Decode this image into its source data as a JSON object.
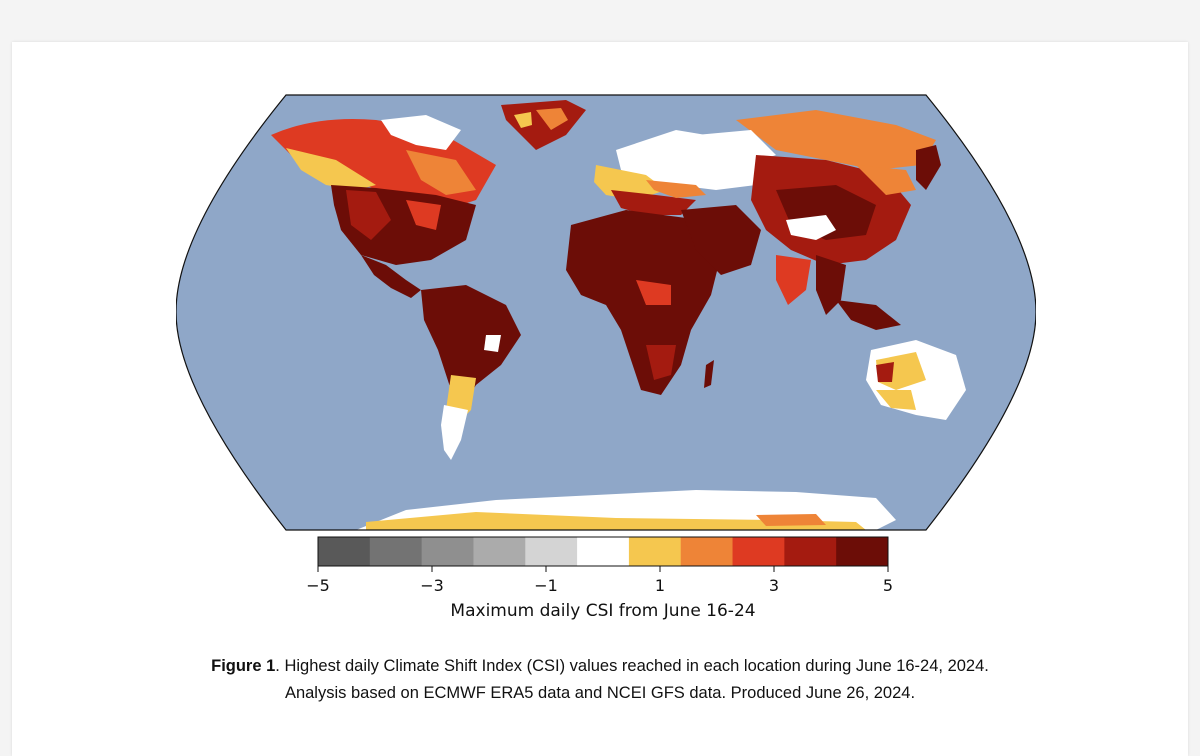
{
  "figure": {
    "colorbar": {
      "colors": [
        "#595959",
        "#737373",
        "#8f8f8f",
        "#ababab",
        "#d4d4d4",
        "#ffffff",
        "#f5c74f",
        "#ee8437",
        "#de3a22",
        "#a41b10",
        "#6c0d07"
      ],
      "tick_labels": [
        "−5",
        "−3",
        "−1",
        "1",
        "3",
        "5"
      ],
      "label": "Maximum daily CSI from June 16-24"
    },
    "caption": {
      "label": "Figure 1",
      "line1_rest": ". Highest daily Climate Shift Index (CSI) values reached in each location during June 16-24, 2024.",
      "line2": "Analysis based on ECMWF ERA5 data and NCEI GFS data. Produced June 26, 2024."
    },
    "map": {
      "ocean_color": "#8fa7c8",
      "land_palette": {
        "extreme": "#6c0d07",
        "very_high": "#a41b10",
        "high": "#de3a22",
        "moderate": "#ee8437",
        "low": "#f5c74f",
        "neutral": "#ffffff"
      }
    }
  },
  "chart_data": {
    "type": "heatmap",
    "colorbar_range": [
      -5,
      5
    ],
    "colorbar_ticks": [
      -5,
      -3,
      -1,
      1,
      3,
      5
    ],
    "colorbar_bins": 11,
    "label": "Maximum daily CSI from June 16-24"
  }
}
